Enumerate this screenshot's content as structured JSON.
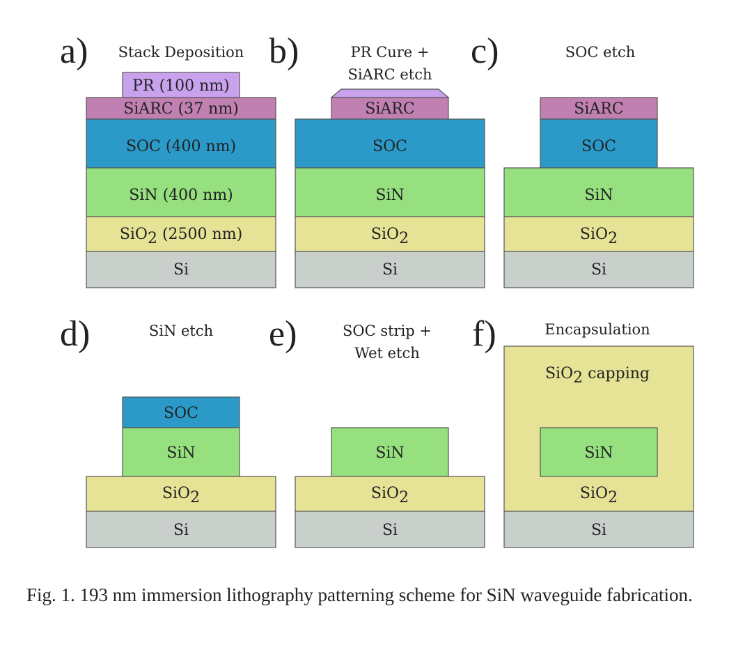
{
  "colors": {
    "PR": "#c9a2ee",
    "SiARC": "#c080b2",
    "SOC": "#2b9ac9",
    "SiN": "#96e07f",
    "SiO2": "#e6e396",
    "Si": "#c9d0cc"
  },
  "panels": [
    {
      "letter": "a)",
      "title": [
        "Stack Deposition"
      ],
      "layers": {
        "pr": "PR (100 nm)",
        "siarc": "SiARC (37 nm)",
        "soc": "SOC (400 nm)",
        "sin": "SiN (400 nm)",
        "sio2_main": "SiO",
        "sio2_sub": "2",
        "sio2_suffix": " (2500 nm)",
        "si": "Si"
      }
    },
    {
      "letter": "b)",
      "title": [
        "PR Cure +",
        "SiARC etch"
      ],
      "layers": {
        "siarc": "SiARC",
        "soc": "SOC",
        "sin": "SiN",
        "sio2_main": "SiO",
        "sio2_sub": "2",
        "si": "Si"
      }
    },
    {
      "letter": "c)",
      "title": [
        "SOC etch"
      ],
      "layers": {
        "siarc": "SiARC",
        "soc": "SOC",
        "sin": "SiN",
        "sio2_main": "SiO",
        "sio2_sub": "2",
        "si": "Si"
      }
    },
    {
      "letter": "d)",
      "title": [
        "SiN etch"
      ],
      "layers": {
        "soc": "SOC",
        "sin": "SiN",
        "sio2_main": "SiO",
        "sio2_sub": "2",
        "si": "Si"
      }
    },
    {
      "letter": "e)",
      "title": [
        "SOC strip +",
        "Wet etch"
      ],
      "layers": {
        "sin": "SiN",
        "sio2_main": "SiO",
        "sio2_sub": "2",
        "si": "Si"
      }
    },
    {
      "letter": "f)",
      "title": [
        "Encapsulation"
      ],
      "layers": {
        "cap_main": "SiO",
        "cap_sub": "2",
        "cap_suffix": " capping",
        "sin": "SiN",
        "sio2_main": "SiO",
        "sio2_sub": "2",
        "si": "Si"
      }
    }
  ],
  "caption": "Fig. 1.  193 nm immersion lithography patterning scheme for SiN waveguide fabrication."
}
